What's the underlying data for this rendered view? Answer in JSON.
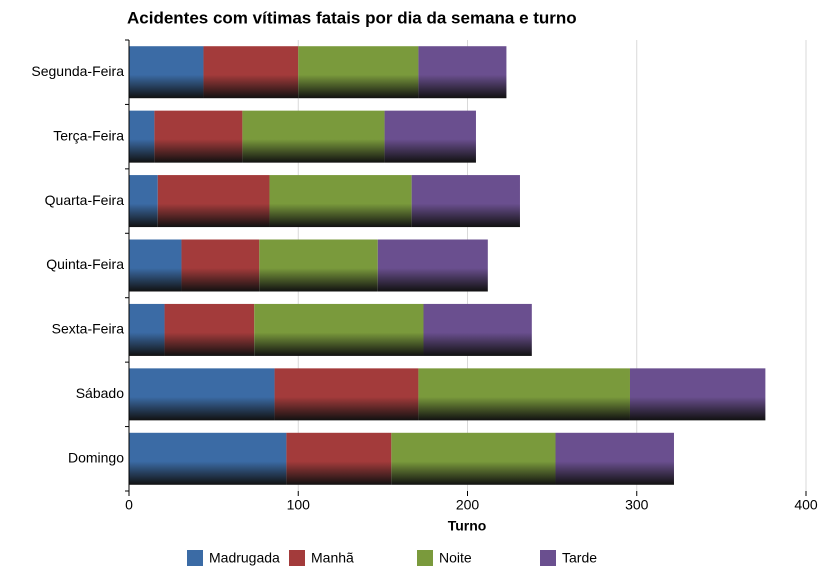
{
  "chart_data": {
    "type": "stacked_barh",
    "title": "Acidentes com vítimas fatais por dia da semana e turno",
    "x_label": "Turno",
    "categories": [
      "Segunda-Feira",
      "Terça-Feira",
      "Quarta-Feira",
      "Quinta-Feira",
      "Sexta-Feira",
      "Sábado",
      "Domingo"
    ],
    "series": [
      {
        "name": "Madrugada",
        "color": "#3b6ba5",
        "values": [
          44,
          15,
          17,
          31,
          21,
          86,
          93
        ]
      },
      {
        "name": "Manhã",
        "color": "#a33b3b",
        "values": [
          56,
          52,
          66,
          46,
          53,
          85,
          62
        ]
      },
      {
        "name": "Noite",
        "color": "#7a9a3c",
        "values": [
          71,
          84,
          84,
          70,
          100,
          125,
          97
        ]
      },
      {
        "name": "Tarde",
        "color": "#6a4f8f",
        "values": [
          52,
          54,
          64,
          65,
          64,
          80,
          70
        ]
      }
    ],
    "xlim": [
      0,
      400
    ],
    "xticks": [
      0,
      100,
      200,
      300,
      400
    ],
    "grid": true
  }
}
